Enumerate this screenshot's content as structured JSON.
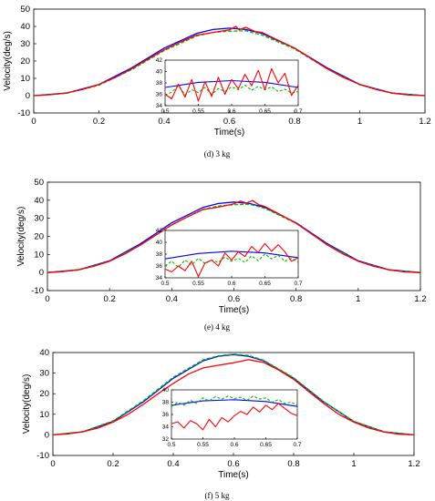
{
  "chart_data": [
    {
      "type": "line",
      "caption": "(d)   3 kg",
      "xlabel": "Time(s)",
      "ylabel": "Velocity(deg/s)",
      "xlim": [
        0,
        1.2
      ],
      "ylim": [
        -10,
        50
      ],
      "xticks": [
        "0",
        "0.2",
        "0.4",
        "0.6",
        "0.8",
        "1",
        "1.2"
      ],
      "yticks": [
        "-10",
        "0",
        "10",
        "20",
        "30",
        "40",
        "50"
      ],
      "series": [
        {
          "color": "#0000ff",
          "style": "solid",
          "x": [
            0,
            0.1,
            0.2,
            0.3,
            0.4,
            0.5,
            0.55,
            0.6,
            0.65,
            0.7,
            0.8,
            0.9,
            1.0,
            1.1,
            1.2
          ],
          "y": [
            0,
            1.5,
            6.5,
            16,
            27.5,
            36,
            38.2,
            39,
            38.2,
            36,
            27.5,
            16,
            6.5,
            1.5,
            0
          ]
        },
        {
          "color": "#00bb00",
          "style": "dashed",
          "x": [
            0,
            0.1,
            0.2,
            0.3,
            0.4,
            0.5,
            0.55,
            0.6,
            0.65,
            0.7,
            0.8,
            0.9,
            1.0,
            1.1,
            1.2
          ],
          "y": [
            0,
            1.3,
            6,
            15,
            26,
            34.5,
            36.5,
            37.2,
            37.5,
            35,
            27,
            15.5,
            6.2,
            1.3,
            0
          ]
        },
        {
          "color": "#ff0000",
          "style": "solid",
          "x": [
            0,
            0.05,
            0.1,
            0.15,
            0.2,
            0.25,
            0.3,
            0.35,
            0.4,
            0.45,
            0.5,
            0.55,
            0.6,
            0.62,
            0.63,
            0.65,
            0.68,
            0.7,
            0.75,
            0.8,
            0.85,
            0.9,
            0.95,
            1.0,
            1.05,
            1.1,
            1.15,
            1.2
          ],
          "y": [
            0,
            0.5,
            1.6,
            3.5,
            6.5,
            10.5,
            15.5,
            21,
            26.5,
            31,
            35,
            36.5,
            38,
            40,
            38,
            39.5,
            37,
            36.5,
            32,
            27.5,
            21.5,
            15.5,
            10.5,
            6.5,
            3.5,
            1.5,
            0.3,
            0
          ]
        }
      ],
      "inset": {
        "xlim": [
          0.5,
          0.7
        ],
        "ylim": [
          34,
          42
        ],
        "xticks": [
          "0.5",
          "0.55",
          "0.6",
          "0.65",
          "0.7"
        ],
        "yticks": [
          "34",
          "36",
          "38",
          "40",
          "42"
        ],
        "series": [
          {
            "color": "#0000ff",
            "style": "solid",
            "x": [
              0.5,
              0.55,
              0.6,
              0.65,
              0.7
            ],
            "y": [
              37.2,
              38.1,
              38.4,
              38.1,
              37.2
            ]
          },
          {
            "color": "#00bb00",
            "style": "dashed",
            "x": [
              0.5,
              0.51,
              0.52,
              0.53,
              0.54,
              0.55,
              0.56,
              0.57,
              0.58,
              0.59,
              0.6,
              0.61,
              0.62,
              0.63,
              0.64,
              0.65,
              0.66,
              0.67,
              0.68,
              0.69,
              0.7
            ],
            "y": [
              35.8,
              36.4,
              37.5,
              35.9,
              36.8,
              36.3,
              37.2,
              36,
              37,
              36.5,
              37.3,
              36.8,
              37.6,
              36.7,
              37.4,
              36.8,
              37.3,
              36.5,
              36.9,
              36.2,
              36.5
            ]
          },
          {
            "color": "#ff0000",
            "style": "solid",
            "x": [
              0.5,
              0.51,
              0.52,
              0.53,
              0.54,
              0.55,
              0.56,
              0.57,
              0.58,
              0.59,
              0.6,
              0.61,
              0.62,
              0.63,
              0.64,
              0.65,
              0.66,
              0.67,
              0.68,
              0.69,
              0.7
            ],
            "y": [
              36,
              35.2,
              37.8,
              35.5,
              38.6,
              34.8,
              38.2,
              35.6,
              39,
              36,
              38.6,
              37,
              39.5,
              37.5,
              40.2,
              36.8,
              40.5,
              38,
              39.7,
              35.8,
              37.6
            ]
          }
        ]
      }
    },
    {
      "type": "line",
      "caption": "(e)   4 kg",
      "xlabel": "Time(s)",
      "ylabel": "Velocity(deg/s)",
      "xlim": [
        0,
        1.2
      ],
      "ylim": [
        -10,
        50
      ],
      "xticks": [
        "0",
        "0.2",
        "0.4",
        "0.6",
        "0.8",
        "1",
        "1.2"
      ],
      "yticks": [
        "-10",
        "0",
        "10",
        "20",
        "30",
        "40",
        "50"
      ],
      "series": [
        {
          "color": "#0000ff",
          "style": "solid",
          "x": [
            0,
            0.1,
            0.2,
            0.3,
            0.4,
            0.5,
            0.55,
            0.6,
            0.65,
            0.7,
            0.8,
            0.9,
            1.0,
            1.1,
            1.2
          ],
          "y": [
            0,
            1.5,
            6.5,
            16,
            27.5,
            36,
            38.2,
            39,
            38.2,
            36,
            27.5,
            16,
            6.5,
            1.5,
            0
          ]
        },
        {
          "color": "#00bb00",
          "style": "dashed",
          "x": [
            0,
            0.1,
            0.2,
            0.3,
            0.4,
            0.5,
            0.55,
            0.6,
            0.65,
            0.7,
            0.8,
            0.9,
            1.0,
            1.1,
            1.2
          ],
          "y": [
            0,
            1.3,
            6.2,
            15.3,
            26.5,
            35,
            36.8,
            37.5,
            37.8,
            35.5,
            27.2,
            15.5,
            6.2,
            1.3,
            0
          ]
        },
        {
          "color": "#ff0000",
          "style": "solid",
          "x": [
            0,
            0.05,
            0.1,
            0.15,
            0.2,
            0.25,
            0.3,
            0.35,
            0.4,
            0.45,
            0.5,
            0.55,
            0.6,
            0.62,
            0.64,
            0.66,
            0.68,
            0.7,
            0.75,
            0.8,
            0.85,
            0.9,
            0.95,
            1.0,
            1.05,
            1.1,
            1.15,
            1.2
          ],
          "y": [
            0,
            0.5,
            1.6,
            3.5,
            6.3,
            10.3,
            15.3,
            20.8,
            26.3,
            30.8,
            34.8,
            36.2,
            38,
            39.5,
            38.5,
            39.8,
            37.5,
            36.5,
            32,
            27.3,
            21.3,
            15.3,
            10.3,
            6.3,
            3.4,
            1.5,
            0.3,
            0
          ]
        }
      ],
      "inset": {
        "xlim": [
          0.5,
          0.7
        ],
        "ylim": [
          34,
          42
        ],
        "xticks": [
          "0.5",
          "0.55",
          "0.6",
          "0.65",
          "0.7"
        ],
        "yticks": [
          "34",
          "36",
          "38",
          "40",
          "42"
        ],
        "series": [
          {
            "color": "#0000ff",
            "style": "solid",
            "x": [
              0.5,
              0.55,
              0.6,
              0.65,
              0.7
            ],
            "y": [
              37.2,
              38.1,
              38.5,
              38.2,
              37.4
            ]
          },
          {
            "color": "#00bb00",
            "style": "dashed",
            "x": [
              0.5,
              0.51,
              0.52,
              0.53,
              0.54,
              0.55,
              0.56,
              0.57,
              0.58,
              0.59,
              0.6,
              0.61,
              0.62,
              0.63,
              0.64,
              0.65,
              0.66,
              0.67,
              0.68,
              0.69,
              0.7
            ],
            "y": [
              36,
              36.8,
              35.8,
              37,
              36.2,
              37.3,
              36.4,
              37,
              36.6,
              37.5,
              36.8,
              37.3,
              36.6,
              37.7,
              36.9,
              38,
              37.2,
              37.8,
              36.8,
              37.3,
              36.6
            ]
          },
          {
            "color": "#ff0000",
            "style": "solid",
            "x": [
              0.5,
              0.51,
              0.52,
              0.53,
              0.54,
              0.55,
              0.56,
              0.57,
              0.58,
              0.59,
              0.6,
              0.61,
              0.62,
              0.63,
              0.64,
              0.65,
              0.66,
              0.67,
              0.68,
              0.69,
              0.7
            ],
            "y": [
              35.5,
              35,
              36,
              35.2,
              36.8,
              34.2,
              36.5,
              37,
              36,
              38.2,
              37,
              38.4,
              37.6,
              39.3,
              38.3,
              39.8,
              38.5,
              39.6,
              38.4,
              36.8,
              37.4
            ]
          }
        ]
      }
    },
    {
      "type": "line",
      "caption": "(f)   5 kg",
      "xlabel": "Time(s)",
      "ylabel": "Velocity(deg/s)",
      "xlim": [
        0,
        1.2
      ],
      "ylim": [
        -10,
        40
      ],
      "xticks": [
        "0",
        "0.2",
        "0.4",
        "0.6",
        "0.8",
        "1",
        "1.2"
      ],
      "yticks": [
        "-10",
        "0",
        "10",
        "20",
        "30",
        "40"
      ],
      "series": [
        {
          "color": "#0000ff",
          "style": "solid",
          "x": [
            0,
            0.1,
            0.2,
            0.3,
            0.4,
            0.5,
            0.55,
            0.6,
            0.65,
            0.7,
            0.8,
            0.9,
            1.0,
            1.1,
            1.2
          ],
          "y": [
            0,
            1.5,
            6.5,
            16,
            27.5,
            36,
            38.2,
            39,
            38.2,
            36,
            27.5,
            16,
            6.5,
            1.5,
            0
          ]
        },
        {
          "color": "#00bb00",
          "style": "dashed",
          "x": [
            0,
            0.1,
            0.2,
            0.3,
            0.4,
            0.5,
            0.55,
            0.6,
            0.65,
            0.7,
            0.8,
            0.9,
            1.0,
            1.1,
            1.2
          ],
          "y": [
            0,
            1.6,
            6.8,
            16.5,
            28,
            36.5,
            38.4,
            39.2,
            38.6,
            36.3,
            27.8,
            16.2,
            6.6,
            1.5,
            0
          ]
        },
        {
          "color": "#ff0000",
          "style": "solid",
          "x": [
            0,
            0.05,
            0.1,
            0.15,
            0.2,
            0.25,
            0.3,
            0.35,
            0.4,
            0.45,
            0.5,
            0.55,
            0.6,
            0.65,
            0.7,
            0.75,
            0.8,
            0.85,
            0.9,
            0.95,
            1.0,
            1.05,
            1.1,
            1.15,
            1.2
          ],
          "y": [
            0,
            0.5,
            1.5,
            3.3,
            6.2,
            10,
            14.8,
            20,
            25,
            29.5,
            32.5,
            33.8,
            35,
            36.5,
            35.2,
            31.5,
            27,
            21,
            15.2,
            10,
            6.2,
            3.3,
            1.4,
            0.3,
            0
          ]
        }
      ],
      "inset": {
        "xlim": [
          0.5,
          0.7
        ],
        "ylim": [
          32,
          40
        ],
        "xticks": [
          "0.5",
          "0.55",
          "0.6",
          "0.65",
          "0.7"
        ],
        "yticks": [
          "32",
          "34",
          "36",
          "38",
          "40"
        ],
        "series": [
          {
            "color": "#0000ff",
            "style": "solid",
            "x": [
              0.5,
              0.55,
              0.6,
              0.65,
              0.7
            ],
            "y": [
              37.5,
              38.2,
              38.4,
              38.1,
              37.3
            ]
          },
          {
            "color": "#00bb00",
            "style": "dashed",
            "x": [
              0.5,
              0.51,
              0.52,
              0.53,
              0.54,
              0.55,
              0.56,
              0.57,
              0.58,
              0.59,
              0.6,
              0.61,
              0.62,
              0.63,
              0.64,
              0.65,
              0.66,
              0.67,
              0.68,
              0.69,
              0.7
            ],
            "y": [
              37.3,
              38,
              37.5,
              38.3,
              37.8,
              38.7,
              38.2,
              38.9,
              38.5,
              39,
              38.6,
              38.8,
              38.3,
              39,
              38.5,
              38.7,
              38,
              38.4,
              37.8,
              38,
              37.5
            ]
          },
          {
            "color": "#ff0000",
            "style": "solid",
            "x": [
              0.5,
              0.51,
              0.52,
              0.53,
              0.54,
              0.55,
              0.56,
              0.57,
              0.58,
              0.59,
              0.6,
              0.61,
              0.62,
              0.63,
              0.64,
              0.65,
              0.66,
              0.67,
              0.68,
              0.69,
              0.7
            ],
            "y": [
              34.5,
              34.8,
              33.8,
              35,
              34.5,
              33.5,
              35.2,
              34,
              35.5,
              34.8,
              35.8,
              36.5,
              36,
              37.2,
              36.4,
              37.5,
              36.8,
              37.8,
              37,
              36.2,
              35.8
            ]
          }
        ]
      }
    }
  ]
}
